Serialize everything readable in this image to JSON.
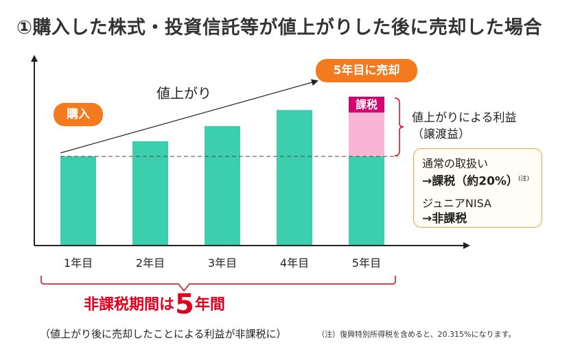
{
  "title": "①購入した株式・投資信託等が値上がりした後に売却した場合",
  "annotations": {
    "buy": "購入",
    "sell": "5年目に売却",
    "rise": "値上がり",
    "tax": "課税",
    "profit_line1": "値上がりによる利益",
    "profit_line2": "（譲渡益）"
  },
  "info_box": {
    "normal_label": "通常の取扱い",
    "normal_value": "→課税（約20%）",
    "normal_note": "(注)",
    "junior_label": "ジュニアNISA",
    "junior_value": "→非課税"
  },
  "period": {
    "prefix": "非課税期間は",
    "number": "5",
    "suffix": "年間",
    "note": "（値上がり後に売却したことによる利益が非課税に）"
  },
  "footnote": "（注）復興特別所得税を含めると、20.315%になります。",
  "colors": {
    "bar": "#3ccfae",
    "gain": "#f9b4d6",
    "tax": "#d6006e",
    "accent": "#f47a1f",
    "bracket": "#e0001e"
  },
  "chart_data": {
    "type": "bar",
    "stacked": true,
    "categories": [
      "1年目",
      "2年目",
      "3年目",
      "4年目",
      "5年目"
    ],
    "series": [
      {
        "values": [
          100,
          117,
          134,
          152,
          100
        ]
      },
      {
        "values": [
          0,
          0,
          0,
          0,
          52
        ]
      }
    ],
    "xlabel": "",
    "ylabel": "",
    "baseline": 100,
    "grid": false
  }
}
